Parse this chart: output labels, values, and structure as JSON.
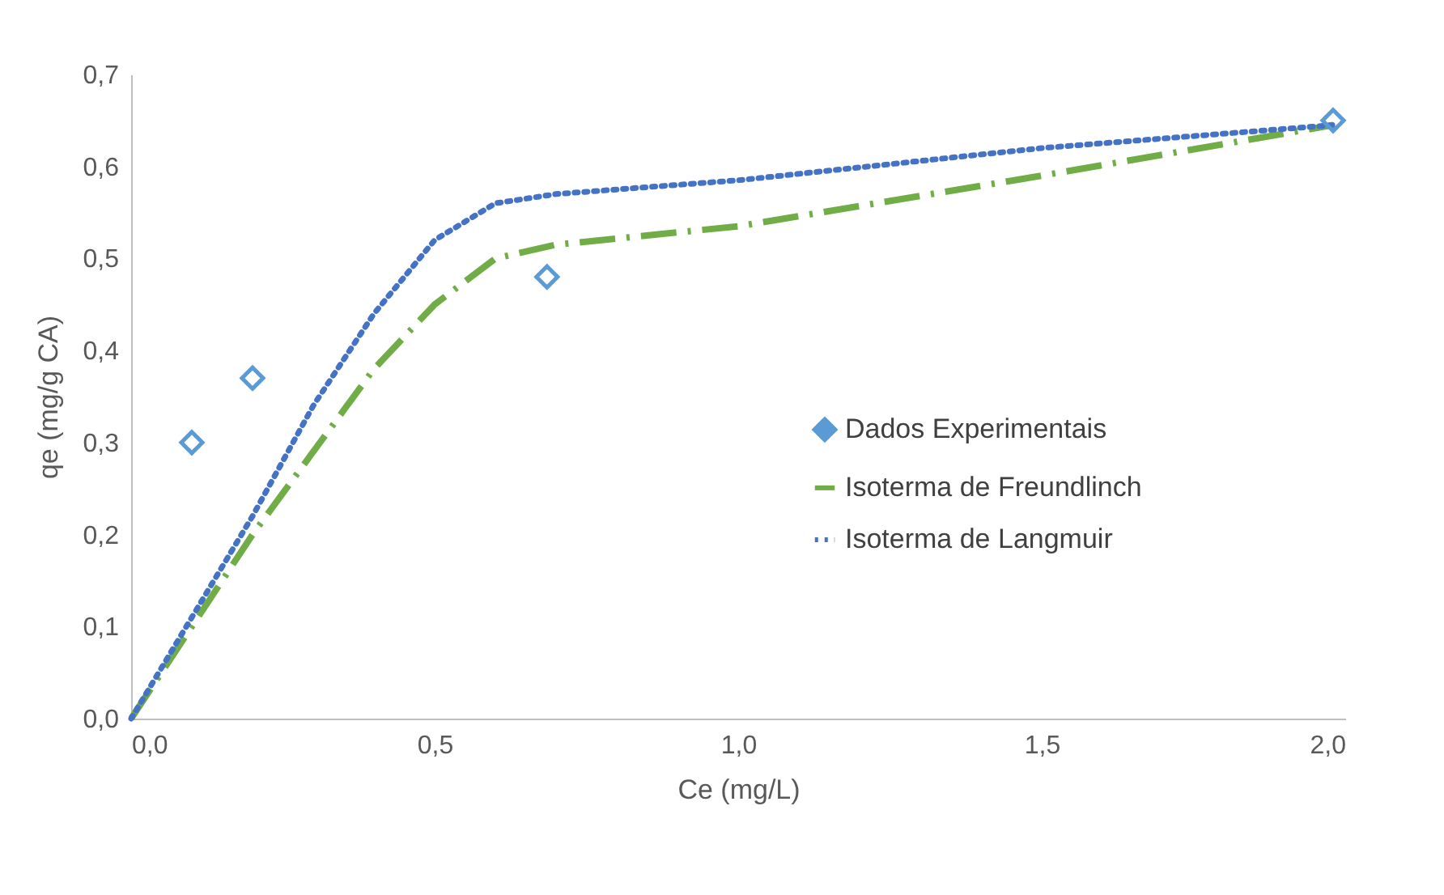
{
  "chart_data": {
    "type": "line",
    "xlabel": "Ce (mg/L)",
    "ylabel": "qe (mg/g CA)",
    "xlim": [
      0,
      2.0
    ],
    "ylim": [
      0,
      0.7
    ],
    "xticks": [
      {
        "value": 0,
        "label": "0,0"
      },
      {
        "value": 0.5,
        "label": "0,5"
      },
      {
        "value": 1.0,
        "label": "1,0"
      },
      {
        "value": 1.5,
        "label": "1,5"
      },
      {
        "value": 2.0,
        "label": "2,0"
      }
    ],
    "yticks": [
      {
        "value": 0,
        "label": "0,0"
      },
      {
        "value": 0.1,
        "label": "0,1"
      },
      {
        "value": 0.2,
        "label": "0,2"
      },
      {
        "value": 0.3,
        "label": "0,3"
      },
      {
        "value": 0.4,
        "label": "0,4"
      },
      {
        "value": 0.5,
        "label": "0,5"
      },
      {
        "value": 0.6,
        "label": "0,6"
      },
      {
        "value": 0.7,
        "label": "0,7"
      }
    ],
    "legend": "right",
    "series": [
      {
        "name": "Dados Experimentais",
        "type": "scatter",
        "marker": "diamond",
        "color": "#5b9bd5",
        "x": [
          0.1,
          0.2,
          0.685,
          1.98
        ],
        "values": [
          0.3,
          0.37,
          0.48,
          0.65
        ]
      },
      {
        "name": "Isoterma de Freundlinch",
        "line_style": "dashed",
        "marker": "none",
        "color": "#70ad47",
        "x": [
          0,
          0.1,
          0.2,
          0.3,
          0.4,
          0.5,
          0.6,
          0.7,
          1.0,
          1.5,
          1.98
        ],
        "values": [
          0,
          0.1,
          0.2,
          0.29,
          0.38,
          0.45,
          0.5,
          0.515,
          0.535,
          0.59,
          0.645
        ]
      },
      {
        "name": "Isoterma de Langmuir",
        "line_style": "dotted",
        "marker": "none",
        "color": "#4472c4",
        "x": [
          0,
          0.1,
          0.2,
          0.3,
          0.4,
          0.5,
          0.6,
          0.7,
          1.0,
          1.5,
          1.98
        ],
        "values": [
          0,
          0.11,
          0.22,
          0.34,
          0.44,
          0.52,
          0.56,
          0.57,
          0.585,
          0.62,
          0.645
        ]
      }
    ]
  }
}
